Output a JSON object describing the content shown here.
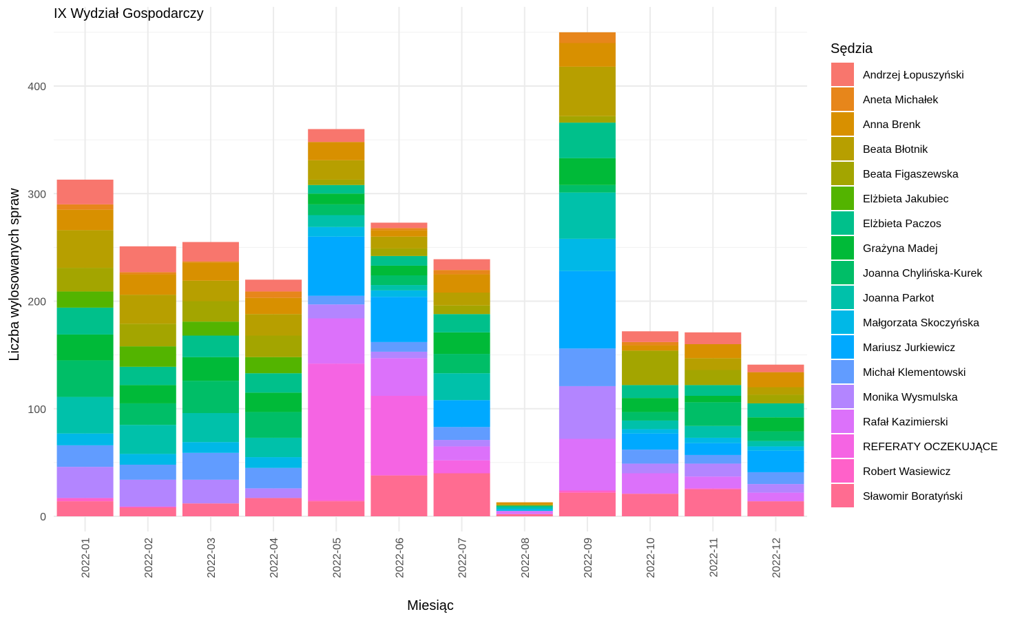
{
  "chart_data": {
    "type": "bar",
    "stacked": true,
    "title": "IX Wydział Gospodarczy",
    "xlabel": "Miesiąc",
    "ylabel": "Liczba wylosowanych spraw",
    "ylim": [
      0,
      450
    ],
    "yticks": [
      0,
      100,
      200,
      300,
      400
    ],
    "grid": true,
    "legend_title": "Sędzia",
    "legend_position": "right",
    "categories": [
      "2022-01",
      "2022-02",
      "2022-03",
      "2022-04",
      "2022-05",
      "2022-06",
      "2022-07",
      "2022-08",
      "2022-09",
      "2022-10",
      "2022-11",
      "2022-12"
    ],
    "series": [
      {
        "name": "Sławomir Boratyński",
        "color": "#FF6C91",
        "values": [
          14,
          8,
          12,
          17,
          14,
          38,
          40,
          2,
          22,
          21,
          25,
          14
        ]
      },
      {
        "name": "Robert Wasiewicz",
        "color": "#FF61C9",
        "values": [
          3,
          1,
          0,
          0,
          1,
          0,
          0,
          0,
          2,
          0,
          1,
          0
        ]
      },
      {
        "name": "REFERATY OCZEKUJĄCE",
        "color": "#F564E3",
        "values": [
          0,
          0,
          0,
          0,
          127,
          74,
          12,
          0,
          0,
          0,
          0,
          0
        ]
      },
      {
        "name": "Rafał Kazimierski",
        "color": "#DC71FA",
        "values": [
          0,
          0,
          0,
          0,
          42,
          35,
          13,
          3,
          48,
          19,
          11,
          8
        ]
      },
      {
        "name": "Monika Wysmulska",
        "color": "#B385FF",
        "values": [
          29,
          25,
          22,
          9,
          13,
          6,
          6,
          0,
          49,
          9,
          12,
          8
        ]
      },
      {
        "name": "Michał Klementowski",
        "color": "#619CFF",
        "values": [
          20,
          14,
          25,
          19,
          8,
          9,
          12,
          0,
          35,
          13,
          8,
          11
        ]
      },
      {
        "name": "Mariusz Jurkiewicz",
        "color": "#00A9FF",
        "values": [
          0,
          0,
          0,
          0,
          55,
          42,
          25,
          0,
          72,
          15,
          11,
          20
        ]
      },
      {
        "name": "Małgorzata Skoczyńska",
        "color": "#00B8E7",
        "values": [
          11,
          10,
          10,
          10,
          9,
          6,
          0,
          2,
          30,
          4,
          5,
          4
        ]
      },
      {
        "name": "Joanna Parkot",
        "color": "#00C1AA",
        "values": [
          34,
          27,
          27,
          18,
          11,
          5,
          25,
          2,
          43,
          8,
          11,
          5
        ]
      },
      {
        "name": "Joanna Chylińska-Kurek",
        "color": "#00BE67",
        "values": [
          34,
          20,
          30,
          24,
          10,
          9,
          18,
          1,
          7,
          8,
          22,
          9
        ]
      },
      {
        "name": "Grażyna Madej",
        "color": "#00BA38",
        "values": [
          24,
          17,
          22,
          18,
          10,
          9,
          20,
          0,
          25,
          13,
          6,
          13
        ]
      },
      {
        "name": "Elżbieta Paczos",
        "color": "#00C08B",
        "values": [
          25,
          17,
          20,
          18,
          8,
          9,
          17,
          0,
          33,
          12,
          10,
          13
        ]
      },
      {
        "name": "Elżbieta Jakubiec",
        "color": "#53B400",
        "values": [
          15,
          19,
          13,
          15,
          0,
          0,
          0,
          0,
          0,
          0,
          0,
          0
        ]
      },
      {
        "name": "Beata Figaszewska",
        "color": "#A3A500",
        "values": [
          22,
          21,
          19,
          20,
          5,
          7,
          8,
          0,
          6,
          32,
          14,
          8
        ]
      },
      {
        "name": "Beata Błotnik",
        "color": "#B79F00",
        "values": [
          35,
          27,
          19,
          20,
          18,
          11,
          12,
          1,
          46,
          0,
          11,
          7
        ]
      },
      {
        "name": "Anna Brenk",
        "color": "#D89000",
        "values": [
          19,
          19,
          17,
          15,
          17,
          6,
          17,
          2,
          22,
          5,
          13,
          14
        ]
      },
      {
        "name": "Aneta Michałek",
        "color": "#E7861B",
        "values": [
          5,
          2,
          1,
          6,
          0,
          2,
          4,
          0,
          10,
          3,
          0,
          0
        ]
      },
      {
        "name": "Andrzej Łopuszyński",
        "color": "#F8766D",
        "values": [
          23,
          24,
          18,
          11,
          12,
          5,
          10,
          0,
          0,
          10,
          11,
          7
        ]
      }
    ],
    "legend_order": [
      "Andrzej Łopuszyński",
      "Aneta Michałek",
      "Anna Brenk",
      "Beata Błotnik",
      "Beata Figaszewska",
      "Elżbieta Jakubiec",
      "Elżbieta Paczos",
      "Grażyna Madej",
      "Joanna Chylińska-Kurek",
      "Joanna Parkot",
      "Małgorzata Skoczyńska",
      "Mariusz Jurkiewicz",
      "Michał Klementowski",
      "Monika Wysmulska",
      "Rafał Kazimierski",
      "REFERATY OCZEKUJĄCE",
      "Robert Wasiewicz",
      "Sławomir Boratyński"
    ]
  }
}
